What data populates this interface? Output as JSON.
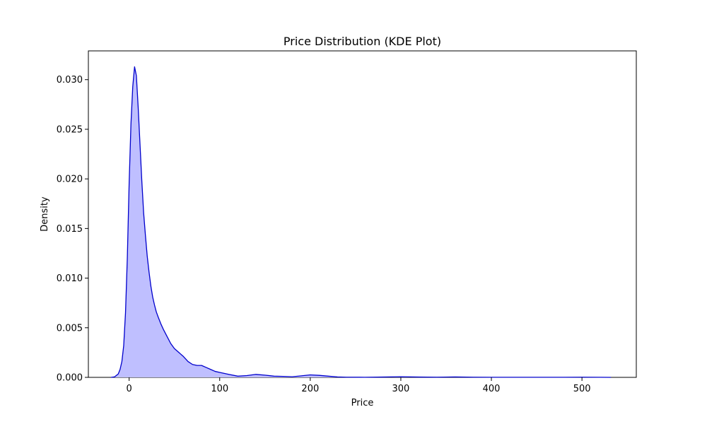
{
  "chart_data": {
    "type": "area",
    "title": "Price Distribution (KDE Plot)",
    "xlabel": "Price",
    "ylabel": "Density",
    "xlim": [
      -45,
      560
    ],
    "ylim": [
      0,
      0.0329
    ],
    "xticks": [
      0,
      100,
      200,
      300,
      400,
      500
    ],
    "xtick_labels": [
      "0",
      "100",
      "200",
      "300",
      "400",
      "500"
    ],
    "yticks": [
      0,
      0.005,
      0.01,
      0.015,
      0.02,
      0.025,
      0.03
    ],
    "ytick_labels": [
      "0.000",
      "0.005",
      "0.010",
      "0.015",
      "0.020",
      "0.025",
      "0.030"
    ],
    "grid": false,
    "legend": "none",
    "series": [
      {
        "color": "#0000cc",
        "fill_color": "#bfbfff",
        "x": [
          -20,
          -16,
          -12,
          -10,
          -8,
          -6,
          -4,
          -2,
          0,
          2,
          4,
          6,
          8,
          10,
          12,
          14,
          16,
          18,
          20,
          22,
          24,
          26,
          28,
          30,
          32,
          35,
          38,
          42,
          46,
          50,
          55,
          60,
          65,
          70,
          75,
          80,
          85,
          90,
          95,
          100,
          110,
          120,
          130,
          140,
          150,
          160,
          170,
          180,
          190,
          200,
          210,
          220,
          230,
          240,
          260,
          280,
          300,
          320,
          340,
          360,
          380,
          400,
          420,
          440,
          460,
          480,
          500,
          520,
          532
        ],
        "y": [
          0,
          5e-05,
          0.00035,
          0.0008,
          0.0016,
          0.0032,
          0.0065,
          0.012,
          0.0195,
          0.0255,
          0.0293,
          0.0313,
          0.0304,
          0.0272,
          0.0235,
          0.0198,
          0.0166,
          0.0143,
          0.0122,
          0.0106,
          0.0092,
          0.0081,
          0.0073,
          0.0066,
          0.0061,
          0.0054,
          0.0048,
          0.0041,
          0.0034,
          0.0029,
          0.0025,
          0.0021,
          0.0016,
          0.0013,
          0.0012,
          0.0012,
          0.001,
          0.0008,
          0.0006,
          0.0005,
          0.0003,
          0.00012,
          0.00018,
          0.0003,
          0.00022,
          0.00012,
          0.0001,
          6e-05,
          0.00015,
          0.00025,
          0.0002,
          0.00012,
          4e-05,
          2e-05,
          1e-05,
          3e-05,
          6e-05,
          3e-05,
          2e-05,
          4e-05,
          2e-05,
          1e-05,
          1e-05,
          1e-05,
          1e-05,
          1e-05,
          2e-05,
          1e-05,
          0
        ]
      }
    ]
  }
}
